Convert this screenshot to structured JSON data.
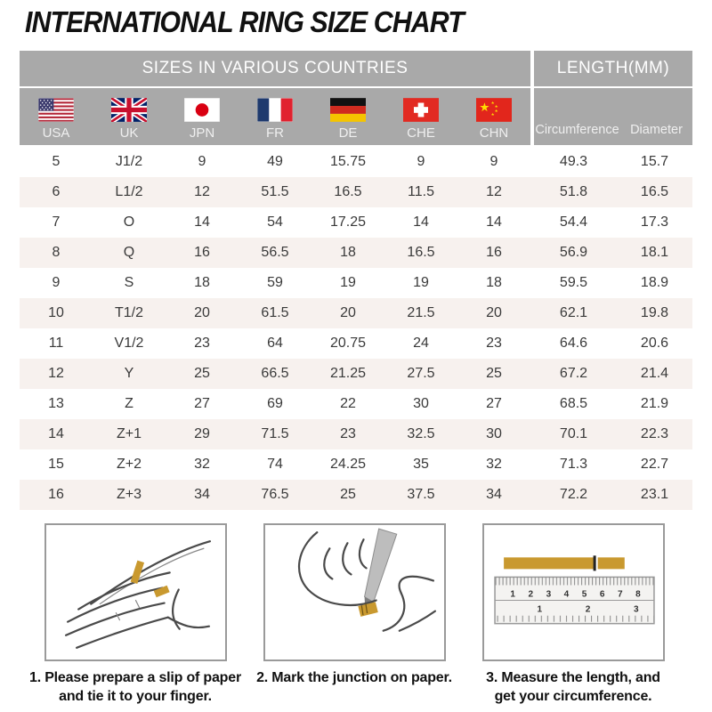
{
  "title": "INTERNATIONAL RING SIZE CHART",
  "table": {
    "header_left": "SIZES IN VARIOUS COUNTRIES",
    "header_right": "LENGTH(MM)",
    "countries": [
      {
        "label": "USA",
        "flag": "usa-flag"
      },
      {
        "label": "UK",
        "flag": "uk-flag"
      },
      {
        "label": "JPN",
        "flag": "japan-flag"
      },
      {
        "label": "FR",
        "flag": "france-flag"
      },
      {
        "label": "DE",
        "flag": "germany-flag"
      },
      {
        "label": "CHE",
        "flag": "switzerland-flag"
      },
      {
        "label": "CHN",
        "flag": "china-flag"
      }
    ],
    "length_columns": [
      "Circumference",
      "Diameter"
    ],
    "rows": [
      [
        "5",
        "J1/2",
        "9",
        "49",
        "15.75",
        "9",
        "9",
        "49.3",
        "15.7"
      ],
      [
        "6",
        "L1/2",
        "12",
        "51.5",
        "16.5",
        "11.5",
        "12",
        "51.8",
        "16.5"
      ],
      [
        "7",
        "O",
        "14",
        "54",
        "17.25",
        "14",
        "14",
        "54.4",
        "17.3"
      ],
      [
        "8",
        "Q",
        "16",
        "56.5",
        "18",
        "16.5",
        "16",
        "56.9",
        "18.1"
      ],
      [
        "9",
        "S",
        "18",
        "59",
        "19",
        "19",
        "18",
        "59.5",
        "18.9"
      ],
      [
        "10",
        "T1/2",
        "20",
        "61.5",
        "20",
        "21.5",
        "20",
        "62.1",
        "19.8"
      ],
      [
        "11",
        "V1/2",
        "23",
        "64",
        "20.75",
        "24",
        "23",
        "64.6",
        "20.6"
      ],
      [
        "12",
        "Y",
        "25",
        "66.5",
        "21.25",
        "27.5",
        "25",
        "67.2",
        "21.4"
      ],
      [
        "13",
        "Z",
        "27",
        "69",
        "22",
        "30",
        "27",
        "68.5",
        "21.9"
      ],
      [
        "14",
        "Z+1",
        "29",
        "71.5",
        "23",
        "32.5",
        "30",
        "70.1",
        "22.3"
      ],
      [
        "15",
        "Z+2",
        "32",
        "74",
        "24.25",
        "35",
        "32",
        "71.3",
        "22.7"
      ],
      [
        "16",
        "Z+3",
        "34",
        "76.5",
        "25",
        "37.5",
        "34",
        "72.2",
        "23.1"
      ]
    ]
  },
  "chart_data": {
    "type": "table",
    "title": "INTERNATIONAL RING SIZE CHART",
    "column_groups": [
      "SIZES IN VARIOUS COUNTRIES",
      "LENGTH(MM)"
    ],
    "columns": [
      "USA",
      "UK",
      "JPN",
      "FR",
      "DE",
      "CHE",
      "CHN",
      "Circumference",
      "Diameter"
    ],
    "rows": [
      [
        "5",
        "J1/2",
        "9",
        "49",
        "15.75",
        "9",
        "9",
        "49.3",
        "15.7"
      ],
      [
        "6",
        "L1/2",
        "12",
        "51.5",
        "16.5",
        "11.5",
        "12",
        "51.8",
        "16.5"
      ],
      [
        "7",
        "O",
        "14",
        "54",
        "17.25",
        "14",
        "14",
        "54.4",
        "17.3"
      ],
      [
        "8",
        "Q",
        "16",
        "56.5",
        "18",
        "16.5",
        "16",
        "56.9",
        "18.1"
      ],
      [
        "9",
        "S",
        "18",
        "59",
        "19",
        "19",
        "18",
        "59.5",
        "18.9"
      ],
      [
        "10",
        "T1/2",
        "20",
        "61.5",
        "20",
        "21.5",
        "20",
        "62.1",
        "19.8"
      ],
      [
        "11",
        "V1/2",
        "23",
        "64",
        "20.75",
        "24",
        "23",
        "64.6",
        "20.6"
      ],
      [
        "12",
        "Y",
        "25",
        "66.5",
        "21.25",
        "27.5",
        "25",
        "67.2",
        "21.4"
      ],
      [
        "13",
        "Z",
        "27",
        "69",
        "22",
        "30",
        "27",
        "68.5",
        "21.9"
      ],
      [
        "14",
        "Z+1",
        "29",
        "71.5",
        "23",
        "32.5",
        "30",
        "70.1",
        "22.3"
      ],
      [
        "15",
        "Z+2",
        "32",
        "74",
        "24.25",
        "35",
        "32",
        "71.3",
        "22.7"
      ],
      [
        "16",
        "Z+3",
        "34",
        "76.5",
        "25",
        "37.5",
        "34",
        "72.2",
        "23.1"
      ]
    ]
  },
  "steps": [
    {
      "caption_line1": "1. Please prepare a slip of paper",
      "caption_line2": "and tie it to your finger.",
      "illustration": "hand-with-paper-strip"
    },
    {
      "caption_line1": "2. Mark the junction on paper.",
      "caption_line2": "",
      "illustration": "marking-junction-with-pencil"
    },
    {
      "caption_line1": "3. Measure the length, and",
      "caption_line2": "get your circumference.",
      "illustration": "strip-on-ruler"
    }
  ],
  "ruler": {
    "cm_ticks": [
      "1",
      "2",
      "3",
      "4",
      "5",
      "6",
      "7",
      "8"
    ],
    "inch_ticks": [
      "1",
      "2",
      "3"
    ]
  },
  "colors": {
    "header_bg": "#a9a9a9",
    "header_text": "#ffffff",
    "row_alt_bg": "#f7f1ee",
    "cell_text": "#3a3a3a",
    "paper_strip_gold": "#c9992f"
  }
}
